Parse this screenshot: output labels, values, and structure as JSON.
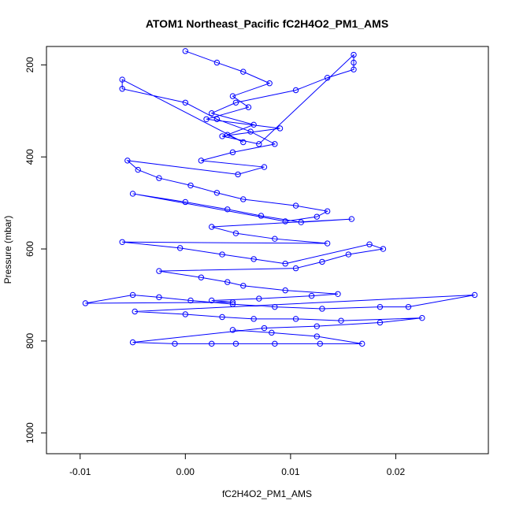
{
  "chart_data": {
    "type": "scatter",
    "title": "ATOM1 Northeast_Pacific fC2H4O2_PM1_AMS",
    "xlabel": "fC2H4O2_PM1_AMS",
    "ylabel": "Pressure (mbar)",
    "xlim": [
      -0.0132,
      0.0288
    ],
    "ylim": [
      1045,
      160
    ],
    "y_reversed": true,
    "x_ticks": [
      -0.01,
      0.0,
      0.01,
      0.02
    ],
    "x_tick_labels": [
      "-0.01",
      "0.00",
      "0.01",
      "0.02"
    ],
    "y_ticks": [
      200,
      400,
      600,
      800,
      1000
    ],
    "y_tick_labels": [
      "200",
      "400",
      "600",
      "800",
      "1000"
    ],
    "grid": false,
    "legend": "none",
    "marker": "open-circle",
    "connected": true,
    "color": "#0000ff",
    "series": [
      {
        "x": [
          0.0,
          0.003,
          0.0055,
          0.008,
          0.0045,
          0.006,
          0.002,
          0.009,
          0.0035,
          0.007,
          0.016,
          0.016,
          0.016,
          0.0135,
          0.0105,
          0.0048,
          0.0025,
          0.0065,
          0.004,
          0.0055,
          -0.006,
          -0.006,
          0.0,
          0.003,
          0.0062,
          0.0085,
          0.0045,
          0.0015,
          0.0075,
          0.005,
          -0.0055,
          -0.0045,
          -0.0025,
          0.0005,
          0.003,
          0.0055,
          0.0105,
          0.0135,
          0.0125,
          0.0095,
          -0.005,
          0.0,
          0.004,
          0.0072,
          0.011,
          0.0158,
          0.0025,
          0.0048,
          0.0085,
          0.0135,
          -0.006,
          -0.0005,
          0.0035,
          0.0065,
          0.0095,
          0.0175,
          0.0188,
          0.0155,
          0.013,
          0.0105,
          -0.0025,
          0.0015,
          0.004,
          0.0055,
          0.0095,
          0.0145,
          0.012,
          0.007,
          0.0025,
          0.0045,
          -0.0095,
          -0.005,
          -0.0025,
          0.0005,
          0.0045,
          0.0085,
          0.013,
          0.0185,
          0.0212,
          0.0275,
          -0.0048,
          0.0,
          0.0035,
          0.0065,
          0.0105,
          0.0148,
          0.0225,
          0.0185,
          0.0125,
          0.0075,
          -0.005,
          -0.001,
          0.0025,
          0.0048,
          0.0085,
          0.0128,
          0.0168,
          0.0125,
          0.0082,
          0.0045
        ],
        "y": [
          170,
          195,
          215,
          240,
          268,
          292,
          318,
          338,
          355,
          372,
          178,
          195,
          210,
          228,
          255,
          282,
          305,
          330,
          352,
          368,
          232,
          252,
          282,
          318,
          345,
          372,
          390,
          408,
          422,
          438,
          408,
          428,
          446,
          462,
          478,
          492,
          506,
          518,
          530,
          540,
          480,
          498,
          514,
          528,
          542,
          535,
          552,
          566,
          578,
          588,
          585,
          598,
          612,
          622,
          632,
          590,
          600,
          612,
          628,
          642,
          648,
          662,
          672,
          680,
          690,
          698,
          702,
          708,
          712,
          716,
          718,
          700,
          705,
          712,
          720,
          726,
          730,
          726,
          726,
          700,
          736,
          742,
          748,
          752,
          752,
          756,
          750,
          760,
          768,
          772,
          803,
          806,
          806,
          806,
          806,
          806,
          806,
          790,
          782,
          776
        ]
      }
    ]
  }
}
